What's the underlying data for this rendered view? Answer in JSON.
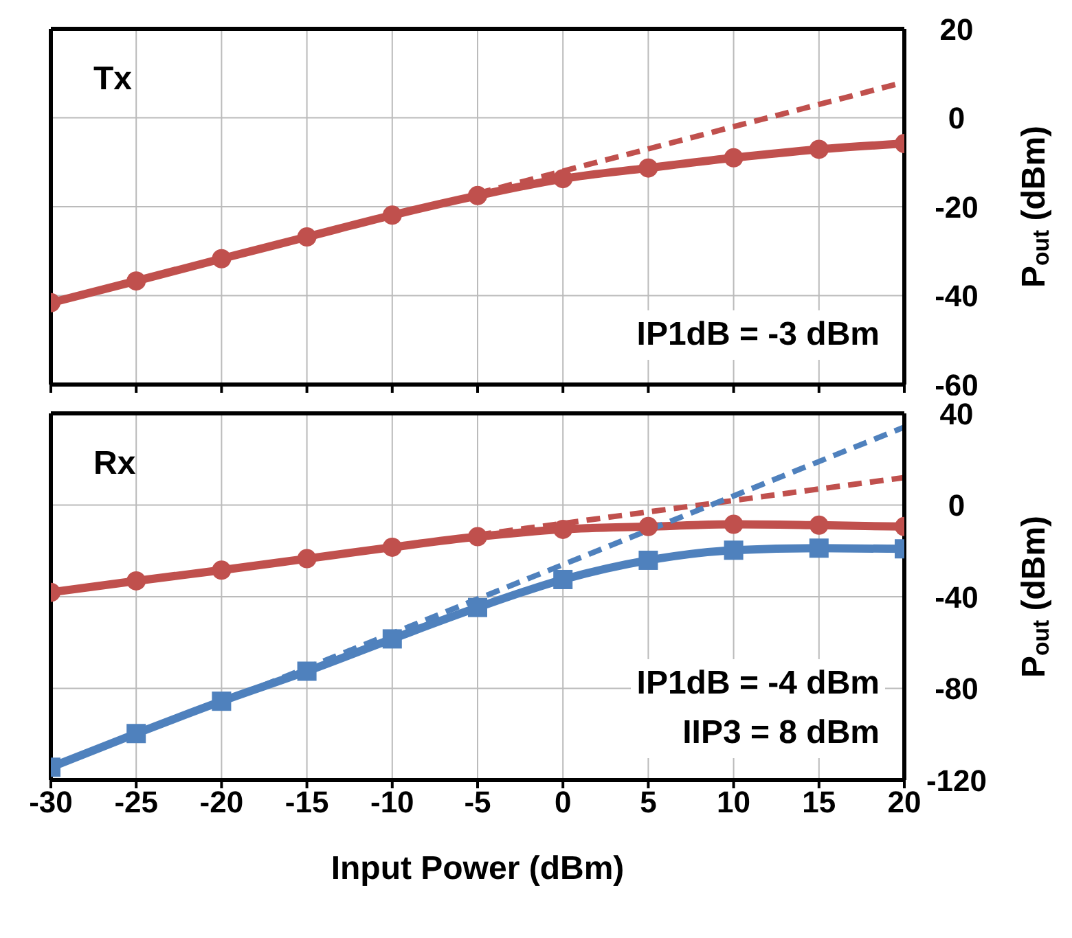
{
  "chart_data": [
    {
      "type": "line",
      "ylabel": "P$_{out}$ (dBm)",
      "annotations": [
        "Tx",
        "IP1dB = -3 dBm"
      ],
      "xlim": [
        -30,
        20
      ],
      "xticks": [
        -30,
        -25,
        -20,
        -15,
        -10,
        -5,
        0,
        5,
        10,
        15,
        20
      ],
      "ylim": [
        -60,
        20
      ],
      "yticks": [
        -60,
        -40,
        -20,
        0,
        20
      ],
      "grid": true,
      "tick_labels": "y",
      "series": [
        {
          "color": "#c0504d",
          "x": [
            -30,
            -25,
            -20,
            -15,
            -10,
            -5,
            0,
            5,
            10,
            15,
            20
          ],
          "values": [
            -41.6,
            -36.7,
            -31.7,
            -26.8,
            -21.9,
            -17.5,
            -13.7,
            -11.3,
            -9,
            -7.1,
            -5.8
          ],
          "marker": "circle",
          "line_style": "solid"
        },
        {
          "color": "#c0504d",
          "x": [
            -5,
            20
          ],
          "values": [
            -17,
            8
          ],
          "marker": "none",
          "line_style": "dashed"
        }
      ]
    },
    {
      "type": "line",
      "xlabel": "Input Power (dBm)",
      "ylabel": "P$_{out}$ (dBm)",
      "annotations": [
        "Rx",
        "IP1dB = -4 dBm",
        "IIP3 = 8 dBm"
      ],
      "xlim": [
        -30,
        20
      ],
      "xticks": [
        -30,
        -25,
        -20,
        -15,
        -10,
        -5,
        0,
        5,
        10,
        15,
        20
      ],
      "ylim": [
        -120,
        40
      ],
      "yticks": [
        -120,
        -80,
        -40,
        0,
        40
      ],
      "grid": true,
      "series": [
        {
          "color": "#c0504d",
          "x": [
            -30,
            -25,
            -20,
            -15,
            -10,
            -5,
            0,
            5,
            10,
            15,
            20
          ],
          "values": [
            -38.1,
            -33.1,
            -28.4,
            -23.4,
            -18.4,
            -13.8,
            -10.6,
            -9.4,
            -8.4,
            -8.8,
            -9.4
          ],
          "marker": "circle",
          "line_style": "solid"
        },
        {
          "color": "#c0504d",
          "x": [
            -5,
            20
          ],
          "values": [
            -13,
            12
          ],
          "marker": "none",
          "line_style": "dashed"
        },
        {
          "color": "#4f81bd",
          "x": [
            -30,
            -25,
            -20,
            -15,
            -10,
            -5,
            0,
            5,
            10,
            15,
            20
          ],
          "values": [
            -114.4,
            -99.7,
            -85.6,
            -72.5,
            -58.4,
            -44.7,
            -32.5,
            -24.1,
            -19.7,
            -18.8,
            -19.1
          ],
          "marker": "square",
          "line_style": "solid"
        },
        {
          "color": "#4f81bd",
          "x": [
            -20,
            20
          ],
          "values": [
            -86,
            34
          ],
          "marker": "none",
          "line_style": "dashed"
        }
      ]
    }
  ]
}
